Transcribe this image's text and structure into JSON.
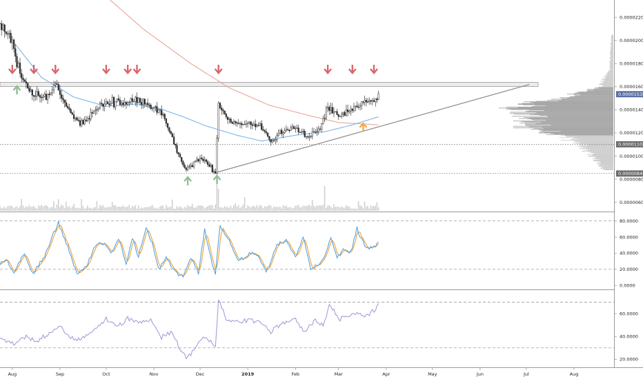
{
  "chart_data": [
    {
      "type": "candlestick",
      "panel": "price",
      "x_range": [
        "2018-07-24",
        "2019-08-27"
      ],
      "x_ticks": [
        "Aug",
        "Sep",
        "Oct",
        "Nov",
        "Dec",
        "2019",
        "Feb",
        "Mar",
        "Apr",
        "May",
        "Jun",
        "Jul",
        "Aug"
      ],
      "ylim": [
        5.2e-06,
        2.35e-05
      ],
      "y_ticks": [
        "0.00002200",
        "0.00002000",
        "0.00001800",
        "0.00001600",
        "0.00001400",
        "0.00001200",
        "0.00001000",
        "0.00000800",
        "0.00000600"
      ],
      "price_tags": [
        {
          "value": "0.00001535",
          "color": "#5b6fa3"
        },
        {
          "value": "0.00001102",
          "color": "#6b6b6b"
        },
        {
          "value": "0.00000849",
          "color": "#6b6b6b"
        }
      ],
      "anchors": [
        {
          "date": "2018-07-24",
          "value": 2.15e-05
        },
        {
          "date": "2018-08-01",
          "value": 1.99e-05
        },
        {
          "date": "2018-08-06",
          "value": 1.7e-05
        },
        {
          "date": "2018-08-15",
          "value": 1.53e-05
        },
        {
          "date": "2018-08-24",
          "value": 1.5e-05
        },
        {
          "date": "2018-08-29",
          "value": 1.63e-05
        },
        {
          "date": "2018-09-05",
          "value": 1.43e-05
        },
        {
          "date": "2018-09-12",
          "value": 1.29e-05
        },
        {
          "date": "2018-09-18",
          "value": 1.31e-05
        },
        {
          "date": "2018-09-26",
          "value": 1.43e-05
        },
        {
          "date": "2018-10-05",
          "value": 1.47e-05
        },
        {
          "date": "2018-10-15",
          "value": 1.46e-05
        },
        {
          "date": "2018-10-24",
          "value": 1.49e-05
        },
        {
          "date": "2018-11-02",
          "value": 1.41e-05
        },
        {
          "date": "2018-11-08",
          "value": 1.32e-05
        },
        {
          "date": "2018-11-15",
          "value": 1.08e-05
        },
        {
          "date": "2018-11-21",
          "value": 8.8e-06
        },
        {
          "date": "2018-11-26",
          "value": 9.2e-06
        },
        {
          "date": "2018-12-01",
          "value": 9.9e-06
        },
        {
          "date": "2018-12-06",
          "value": 9.3e-06
        },
        {
          "date": "2018-12-11",
          "value": 8.6e-06
        },
        {
          "date": "2018-12-13",
          "value": 1.45e-05
        },
        {
          "date": "2018-12-20",
          "value": 1.3e-05
        },
        {
          "date": "2018-12-30",
          "value": 1.28e-05
        },
        {
          "date": "2019-01-10",
          "value": 1.25e-05
        },
        {
          "date": "2019-01-16",
          "value": 1.13e-05
        },
        {
          "date": "2019-01-25",
          "value": 1.22e-05
        },
        {
          "date": "2019-02-01",
          "value": 1.24e-05
        },
        {
          "date": "2019-02-10",
          "value": 1.17e-05
        },
        {
          "date": "2019-02-17",
          "value": 1.24e-05
        },
        {
          "date": "2019-02-22",
          "value": 1.43e-05
        },
        {
          "date": "2019-03-01",
          "value": 1.34e-05
        },
        {
          "date": "2019-03-08",
          "value": 1.4e-05
        },
        {
          "date": "2019-03-15",
          "value": 1.45e-05
        },
        {
          "date": "2019-03-22",
          "value": 1.47e-05
        },
        {
          "date": "2019-03-27",
          "value": 1.54e-05
        }
      ],
      "resistance": 1.62e-05,
      "horizontal_lines": [
        1.1e-05,
        8.5e-06
      ],
      "ascending_trendline": [
        {
          "date": "2018-12-12",
          "value": 8.6e-06
        },
        {
          "date": "2019-07-03",
          "value": 1.62e-05
        }
      ],
      "ma_fast": [
        {
          "date": "2018-08-01",
          "value": 2e-05
        },
        {
          "date": "2018-08-20",
          "value": 1.68e-05
        },
        {
          "date": "2018-09-10",
          "value": 1.51e-05
        },
        {
          "date": "2018-10-01",
          "value": 1.43e-05
        },
        {
          "date": "2018-10-20",
          "value": 1.45e-05
        },
        {
          "date": "2018-11-05",
          "value": 1.41e-05
        },
        {
          "date": "2018-11-20",
          "value": 1.34e-05
        },
        {
          "date": "2018-12-05",
          "value": 1.26e-05
        },
        {
          "date": "2018-12-25",
          "value": 1.18e-05
        },
        {
          "date": "2019-01-10",
          "value": 1.13e-05
        },
        {
          "date": "2019-02-01",
          "value": 1.18e-05
        },
        {
          "date": "2019-02-20",
          "value": 1.21e-05
        },
        {
          "date": "2019-03-10",
          "value": 1.27e-05
        },
        {
          "date": "2019-03-27",
          "value": 1.34e-05
        }
      ],
      "ma_slow": [
        {
          "date": "2018-09-25",
          "value": 2.45e-05
        },
        {
          "date": "2018-10-25",
          "value": 2.1e-05
        },
        {
          "date": "2018-11-25",
          "value": 1.8e-05
        },
        {
          "date": "2018-12-20",
          "value": 1.59e-05
        },
        {
          "date": "2019-01-15",
          "value": 1.44e-05
        },
        {
          "date": "2019-02-10",
          "value": 1.35e-05
        },
        {
          "date": "2019-03-01",
          "value": 1.29e-05
        },
        {
          "date": "2019-03-27",
          "value": 1.27e-05
        }
      ],
      "down_arrows": [
        "2018-08-01",
        "2018-08-15",
        "2018-08-29",
        "2018-10-01",
        "2018-10-15",
        "2018-10-21",
        "2018-12-13",
        "2019-02-22",
        "2019-03-10",
        "2019-03-24"
      ],
      "up_arrows_green": [
        "2018-08-04",
        "2018-11-23",
        "2018-12-12"
      ],
      "up_arrows_orange": [
        "2019-03-17"
      ],
      "volume_spikes": [
        {
          "date": "2018-12-12",
          "value": 1.0
        },
        {
          "date": "2018-12-13",
          "value": 0.7
        },
        {
          "date": "2019-02-20",
          "value": 0.8
        }
      ],
      "volume_profile": [
        {
          "price": 2.05e-05,
          "weight": 0.02
        },
        {
          "price": 1.75e-05,
          "weight": 0.04
        },
        {
          "price": 1.6e-05,
          "weight": 0.15
        },
        {
          "price": 1.5e-05,
          "weight": 0.55
        },
        {
          "price": 1.45e-05,
          "weight": 0.95
        },
        {
          "price": 1.4e-05,
          "weight": 1.0
        },
        {
          "price": 1.32e-05,
          "weight": 0.85
        },
        {
          "price": 1.25e-05,
          "weight": 0.9
        },
        {
          "price": 1.18e-05,
          "weight": 0.6
        },
        {
          "price": 1.1e-05,
          "weight": 0.35
        },
        {
          "price": 9.8e-06,
          "weight": 0.2
        },
        {
          "price": 8.8e-06,
          "weight": 0.1
        }
      ]
    },
    {
      "type": "line",
      "panel": "stochastic",
      "ylim": [
        -5,
        90
      ],
      "y_ticks": [
        "80.0000",
        "60.0000",
        "40.0000",
        "20.0000",
        "0.0000"
      ],
      "bands": [
        80,
        20
      ],
      "k_color": "#56a2e0",
      "d_color": "#f0a030",
      "k_anchors": [
        {
          "date": "2018-07-24",
          "value": 28
        },
        {
          "date": "2018-07-28",
          "value": 32
        },
        {
          "date": "2018-08-02",
          "value": 15
        },
        {
          "date": "2018-08-09",
          "value": 40
        },
        {
          "date": "2018-08-14",
          "value": 15
        },
        {
          "date": "2018-08-22",
          "value": 35
        },
        {
          "date": "2018-08-27",
          "value": 60
        },
        {
          "date": "2018-08-31",
          "value": 78
        },
        {
          "date": "2018-09-06",
          "value": 48
        },
        {
          "date": "2018-09-12",
          "value": 15
        },
        {
          "date": "2018-09-18",
          "value": 22
        },
        {
          "date": "2018-09-24",
          "value": 50
        },
        {
          "date": "2018-09-30",
          "value": 52
        },
        {
          "date": "2018-10-04",
          "value": 40
        },
        {
          "date": "2018-10-09",
          "value": 58
        },
        {
          "date": "2018-10-14",
          "value": 28
        },
        {
          "date": "2018-10-18",
          "value": 58
        },
        {
          "date": "2018-10-22",
          "value": 36
        },
        {
          "date": "2018-10-27",
          "value": 70
        },
        {
          "date": "2018-10-31",
          "value": 52
        },
        {
          "date": "2018-11-04",
          "value": 20
        },
        {
          "date": "2018-11-09",
          "value": 35
        },
        {
          "date": "2018-11-14",
          "value": 18
        },
        {
          "date": "2018-11-20",
          "value": 10
        },
        {
          "date": "2018-11-25",
          "value": 35
        },
        {
          "date": "2018-11-30",
          "value": 15
        },
        {
          "date": "2018-12-04",
          "value": 70
        },
        {
          "date": "2018-12-07",
          "value": 40
        },
        {
          "date": "2018-12-11",
          "value": 14
        },
        {
          "date": "2018-12-14",
          "value": 72
        },
        {
          "date": "2018-12-20",
          "value": 55
        },
        {
          "date": "2018-12-26",
          "value": 30
        },
        {
          "date": "2019-01-02",
          "value": 40
        },
        {
          "date": "2019-01-08",
          "value": 36
        },
        {
          "date": "2019-01-13",
          "value": 16
        },
        {
          "date": "2019-01-20",
          "value": 50
        },
        {
          "date": "2019-01-26",
          "value": 55
        },
        {
          "date": "2019-02-01",
          "value": 35
        },
        {
          "date": "2019-02-06",
          "value": 60
        },
        {
          "date": "2019-02-11",
          "value": 20
        },
        {
          "date": "2019-02-16",
          "value": 25
        },
        {
          "date": "2019-02-20",
          "value": 35
        },
        {
          "date": "2019-02-24",
          "value": 60
        },
        {
          "date": "2019-02-28",
          "value": 35
        },
        {
          "date": "2019-03-04",
          "value": 45
        },
        {
          "date": "2019-03-09",
          "value": 40
        },
        {
          "date": "2019-03-13",
          "value": 70
        },
        {
          "date": "2019-03-18",
          "value": 48
        },
        {
          "date": "2019-03-22",
          "value": 46
        },
        {
          "date": "2019-03-27",
          "value": 52
        }
      ]
    },
    {
      "type": "line",
      "panel": "rsi",
      "ylim": [
        13,
        80
      ],
      "y_ticks": [
        "60.0000",
        "40.0000",
        "20.0000"
      ],
      "bands": [
        70,
        30
      ],
      "color": "#a89bd6",
      "anchors": [
        {
          "date": "2018-07-24",
          "value": 38
        },
        {
          "date": "2018-08-02",
          "value": 33
        },
        {
          "date": "2018-08-10",
          "value": 40
        },
        {
          "date": "2018-08-16",
          "value": 36
        },
        {
          "date": "2018-08-24",
          "value": 42
        },
        {
          "date": "2018-09-01",
          "value": 50
        },
        {
          "date": "2018-09-07",
          "value": 38
        },
        {
          "date": "2018-09-14",
          "value": 37
        },
        {
          "date": "2018-09-22",
          "value": 45
        },
        {
          "date": "2018-10-01",
          "value": 55
        },
        {
          "date": "2018-10-08",
          "value": 48
        },
        {
          "date": "2018-10-15",
          "value": 56
        },
        {
          "date": "2018-10-22",
          "value": 52
        },
        {
          "date": "2018-10-30",
          "value": 55
        },
        {
          "date": "2018-11-06",
          "value": 40
        },
        {
          "date": "2018-11-12",
          "value": 44
        },
        {
          "date": "2018-11-18",
          "value": 30
        },
        {
          "date": "2018-11-22",
          "value": 20
        },
        {
          "date": "2018-11-28",
          "value": 30
        },
        {
          "date": "2018-12-03",
          "value": 40
        },
        {
          "date": "2018-12-08",
          "value": 36
        },
        {
          "date": "2018-12-11",
          "value": 31
        },
        {
          "date": "2018-12-13",
          "value": 74
        },
        {
          "date": "2018-12-18",
          "value": 55
        },
        {
          "date": "2018-12-25",
          "value": 52
        },
        {
          "date": "2019-01-02",
          "value": 55
        },
        {
          "date": "2019-01-10",
          "value": 52
        },
        {
          "date": "2019-01-16",
          "value": 44
        },
        {
          "date": "2019-01-24",
          "value": 52
        },
        {
          "date": "2019-02-01",
          "value": 55
        },
        {
          "date": "2019-02-07",
          "value": 44
        },
        {
          "date": "2019-02-14",
          "value": 55
        },
        {
          "date": "2019-02-19",
          "value": 48
        },
        {
          "date": "2019-02-23",
          "value": 68
        },
        {
          "date": "2019-03-01",
          "value": 55
        },
        {
          "date": "2019-03-09",
          "value": 60
        },
        {
          "date": "2019-03-15",
          "value": 58
        },
        {
          "date": "2019-03-22",
          "value": 60
        },
        {
          "date": "2019-03-27",
          "value": 67
        }
      ]
    }
  ]
}
